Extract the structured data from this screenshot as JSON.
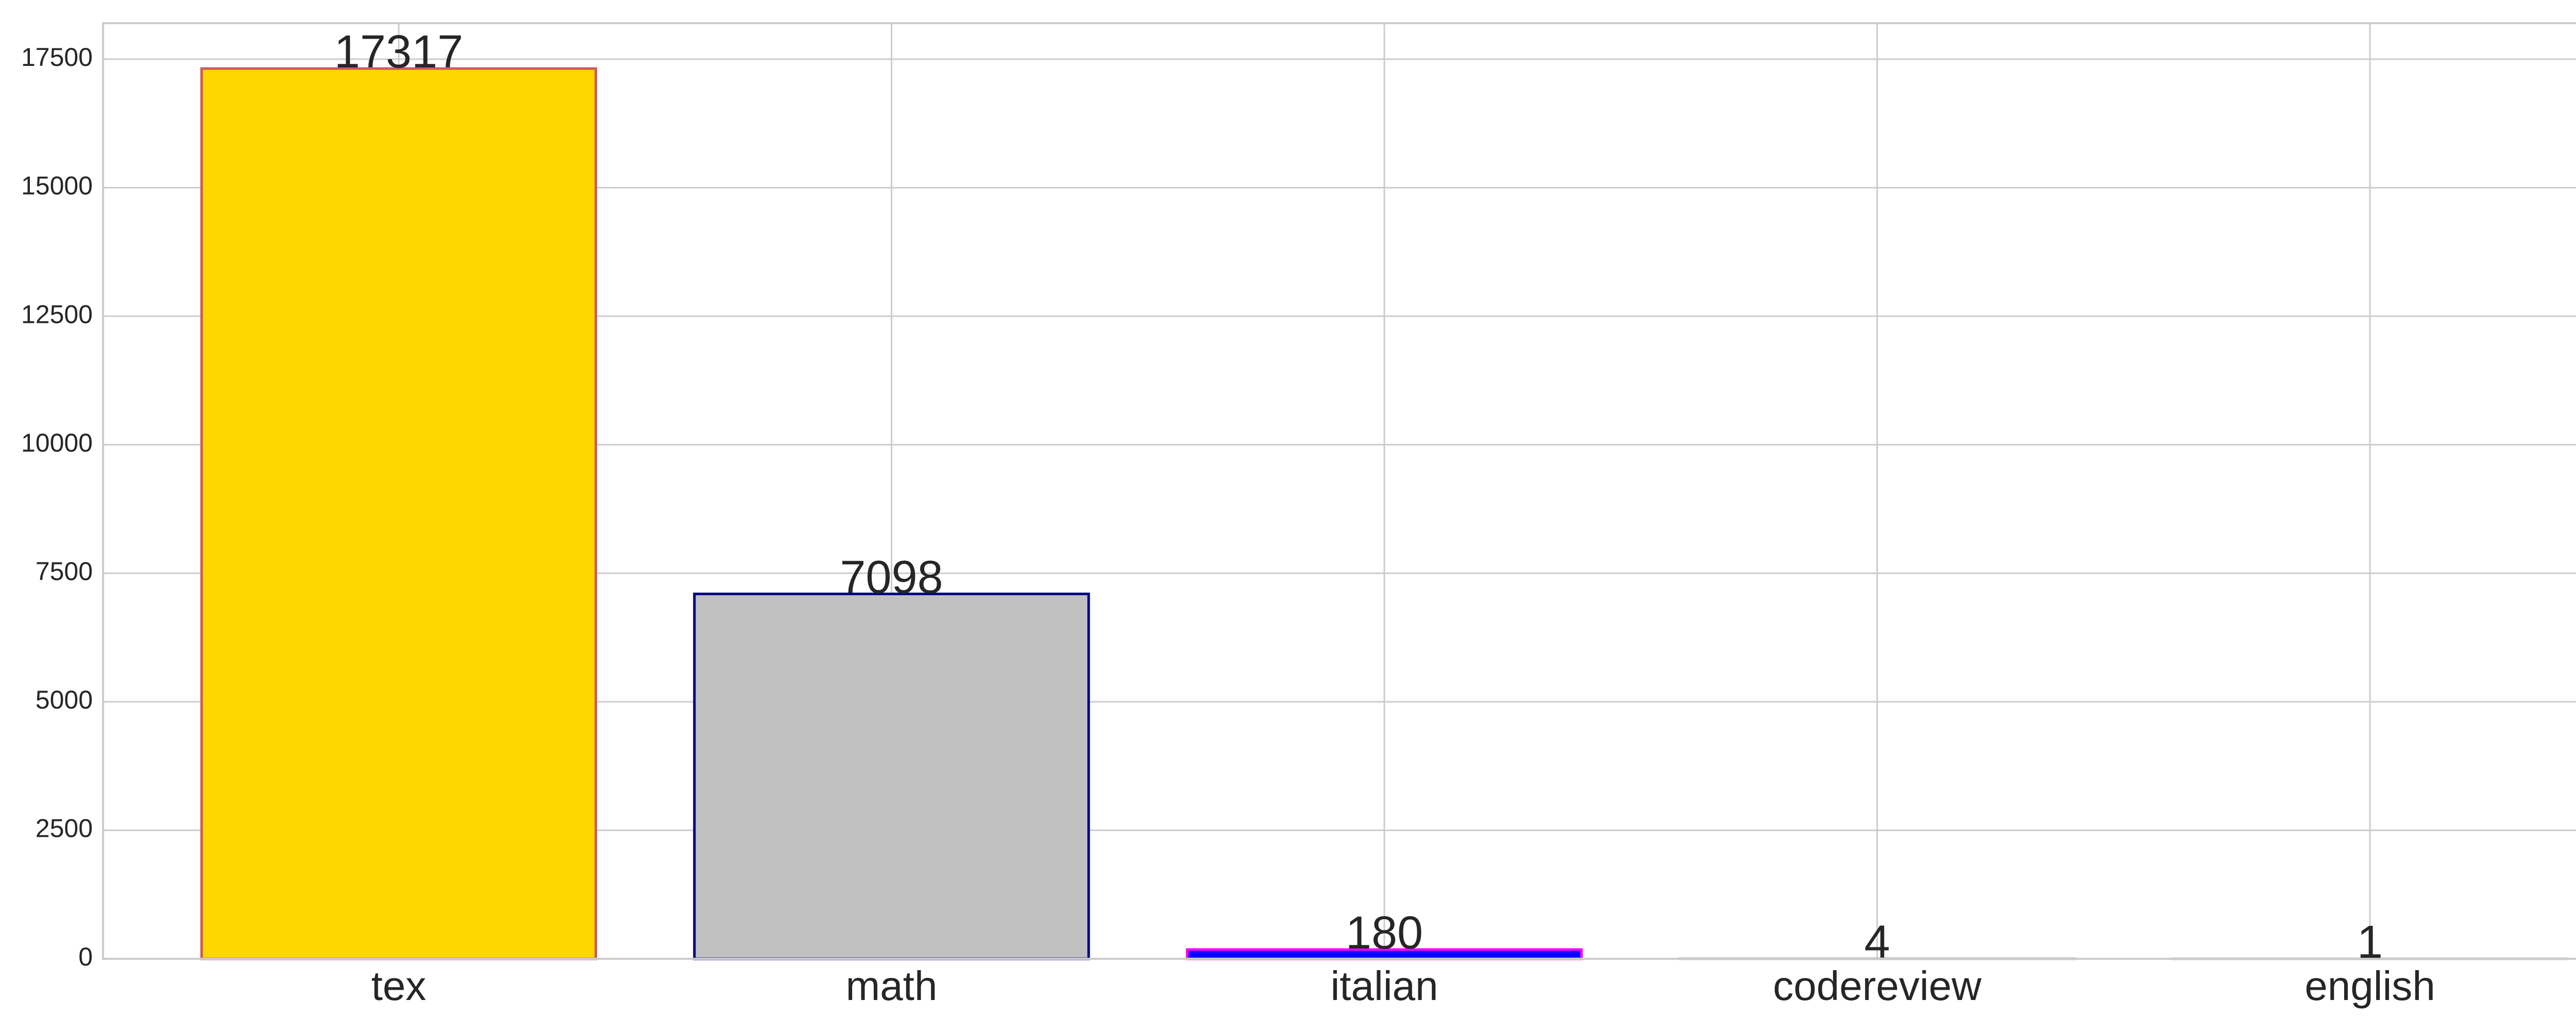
{
  "chart_data": {
    "type": "bar",
    "title": "",
    "xlabel": "",
    "ylabel": "",
    "categories": [
      "tex",
      "math",
      "italian",
      "codereview",
      "english"
    ],
    "values": [
      17317,
      7098,
      180,
      4,
      1
    ],
    "data_labels": [
      "17317",
      "7098",
      "180",
      "4",
      "1"
    ],
    "bar_fill_colors": [
      "#FFD700",
      "#C0C0C0",
      "#0000FF",
      "#C0C0C0",
      "#C0C0C0"
    ],
    "bar_edge_colors": [
      "#CD5C5C",
      "#000080",
      "#FF00FF",
      "#C0C0C0",
      "#C0C0C0"
    ],
    "ylim": [
      0,
      18200
    ],
    "yticks": [
      0,
      2500,
      5000,
      7500,
      10000,
      12500,
      15000,
      17500
    ],
    "ytick_labels": [
      "0",
      "2500",
      "5000",
      "7500",
      "10000",
      "12500",
      "15000",
      "17500"
    ],
    "grid": true,
    "legend": "none",
    "colors": {
      "grid": "#cccccc",
      "frame": "#cccccc",
      "text": "#262626",
      "background": "#ffffff"
    }
  }
}
